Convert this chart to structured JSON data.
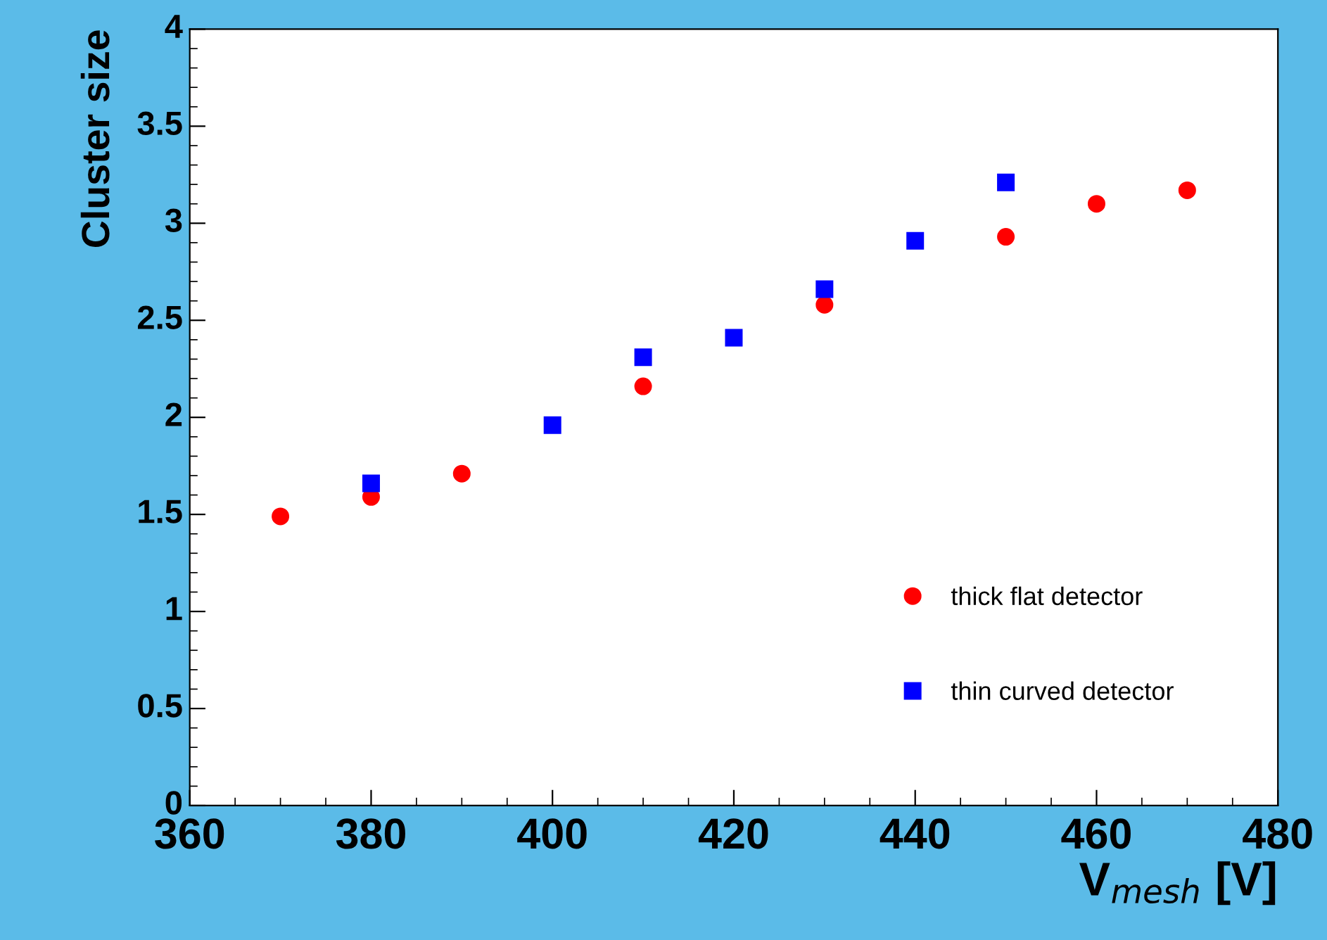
{
  "chart_data": {
    "type": "scatter",
    "xlabel": "V$_{mesh}$ [V]",
    "ylabel": "Cluster size",
    "xlim": [
      360,
      480
    ],
    "xticks": [
      360,
      380,
      400,
      420,
      440,
      460,
      480
    ],
    "ylim": [
      0,
      4
    ],
    "yticks": [
      0,
      0.5,
      1,
      1.5,
      2,
      2.5,
      3,
      3.5,
      4
    ],
    "grid": false,
    "legend": "bottom right",
    "series": [
      {
        "name": "thick flat detector",
        "color": "#ff0000",
        "marker": "circle",
        "x": [
          370,
          380,
          390,
          410,
          430,
          450,
          460,
          470
        ],
        "values": [
          1.49,
          1.59,
          1.71,
          2.16,
          2.58,
          2.93,
          3.1,
          3.17
        ]
      },
      {
        "name": "thin curved detector",
        "color": "#0000ff",
        "marker": "square",
        "x": [
          380,
          400,
          410,
          420,
          430,
          440,
          450
        ],
        "values": [
          1.66,
          1.96,
          2.31,
          2.41,
          2.66,
          2.91,
          3.21
        ]
      }
    ]
  }
}
